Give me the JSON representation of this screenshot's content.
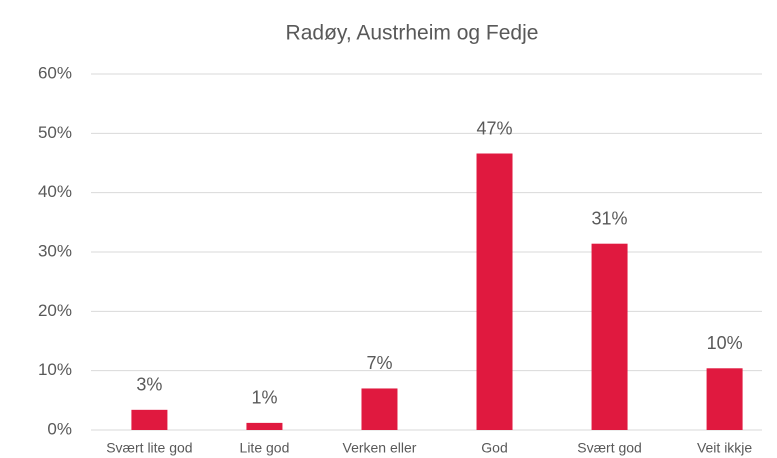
{
  "chart_data": {
    "type": "bar",
    "title": "Radøy, Austrheim og Fedje",
    "categories": [
      "Svært lite god",
      "Lite god",
      "Verken eller",
      "God",
      "Svært god",
      "Veit ikkje"
    ],
    "values": [
      3.4,
      1.2,
      7.0,
      46.6,
      31.4,
      10.4
    ],
    "value_labels": [
      "3%",
      "1%",
      "7%",
      "47%",
      "31%",
      "10%"
    ],
    "color": "#e0193f",
    "ylim": [
      0,
      60
    ],
    "yticks": [
      {
        "value": 0,
        "label": "0%"
      },
      {
        "value": 10,
        "label": "10%"
      },
      {
        "value": 20,
        "label": "20%"
      },
      {
        "value": 30,
        "label": "30%"
      },
      {
        "value": 40,
        "label": "40%"
      },
      {
        "value": 50,
        "label": "50%"
      },
      {
        "value": 60,
        "label": "60%"
      }
    ],
    "grid": true
  }
}
